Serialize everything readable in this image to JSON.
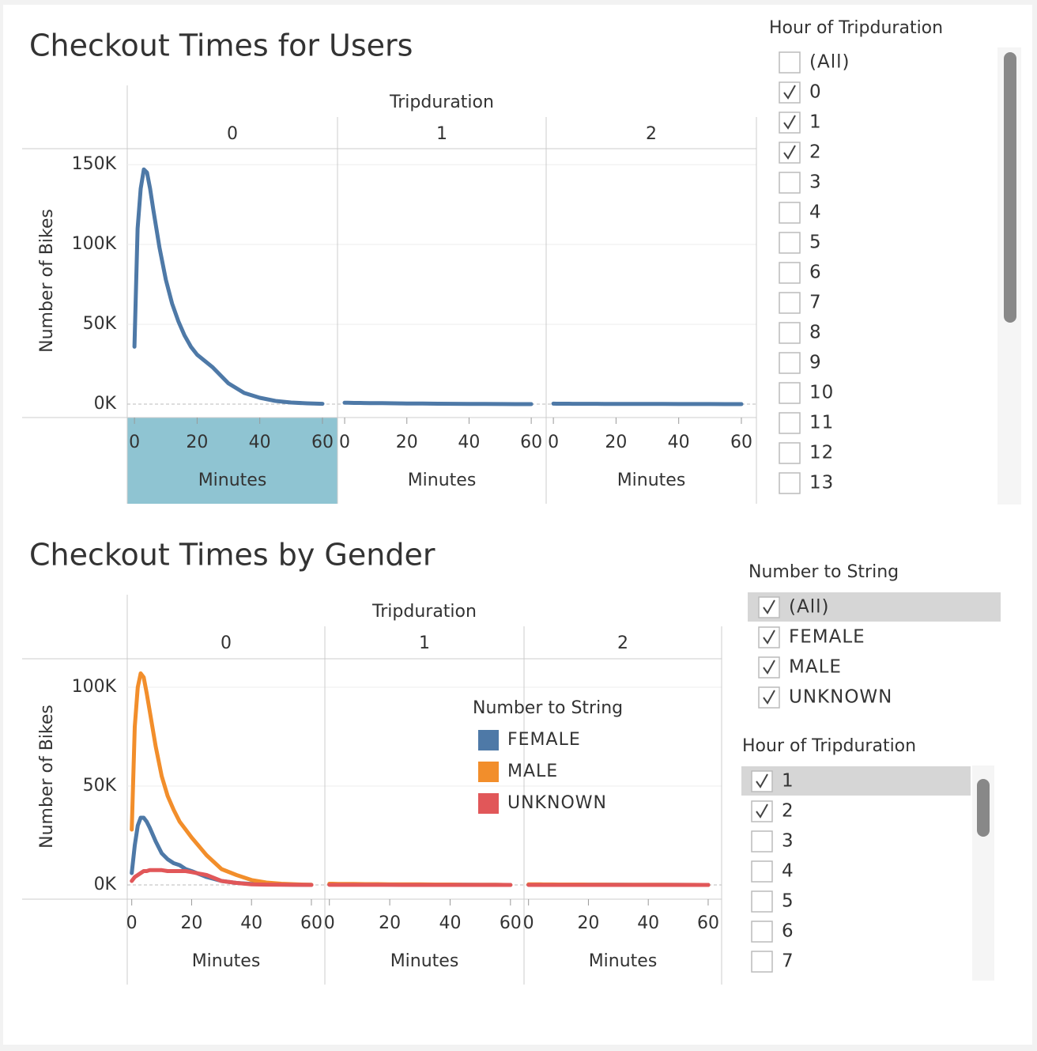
{
  "chart_data": [
    {
      "type": "line",
      "title": "Checkout Times for Users",
      "facet_title": "Tripduration",
      "x_label": "Minutes",
      "y_label": "Number of Bikes",
      "x": [
        0,
        1,
        2,
        3,
        4,
        5,
        6,
        8,
        10,
        12,
        14,
        16,
        18,
        20,
        25,
        30,
        35,
        40,
        45,
        50,
        55,
        60
      ],
      "xlim": [
        -2.3,
        64.8
      ],
      "xticks": [
        0,
        20,
        40,
        60
      ],
      "ylim": [
        -8400,
        160000
      ],
      "yticks": [
        {
          "value": 0,
          "label": "0K"
        },
        {
          "value": 50000,
          "label": "50K"
        },
        {
          "value": 100000,
          "label": "100K"
        },
        {
          "value": 150000,
          "label": "150K"
        }
      ],
      "grid": true,
      "legend": false,
      "series": [
        {
          "color": "#4e79a7"
        }
      ],
      "facets": [
        {
          "label": "0",
          "values": [
            [
              36000,
              110000,
              135000,
              147000,
              145000,
              135000,
              122000,
              98000,
              78000,
              63000,
              52000,
              43000,
              36000,
              31000,
              23000,
              13000,
              7000,
              4000,
              2000,
              1000,
              500,
              200
            ]
          ]
        },
        {
          "label": "1",
          "values": [
            [
              900,
              850,
              800,
              780,
              760,
              740,
              720,
              680,
              640,
              600,
              560,
              520,
              480,
              440,
              360,
              280,
              210,
              150,
              100,
              60,
              30,
              10
            ]
          ]
        },
        {
          "label": "2",
          "values": [
            [
              300,
              290,
              280,
              270,
              260,
              250,
              240,
              230,
              220,
              210,
              200,
              190,
              180,
              170,
              150,
              130,
              110,
              90,
              70,
              50,
              30,
              10
            ]
          ]
        }
      ]
    },
    {
      "type": "line",
      "title": "Checkout Times by Gender",
      "facet_title": "Tripduration",
      "x_label": "Minutes",
      "y_label": "Number of Bikes",
      "x": [
        0,
        1,
        2,
        3,
        4,
        5,
        6,
        8,
        10,
        12,
        14,
        16,
        18,
        20,
        25,
        30,
        35,
        40,
        45,
        50,
        55,
        60
      ],
      "xlim": [
        -1.5,
        64.5
      ],
      "xticks": [
        0,
        20,
        40,
        60
      ],
      "ylim": [
        -7200,
        114400
      ],
      "yticks": [
        {
          "value": 0,
          "label": "0K"
        },
        {
          "value": 50000,
          "label": "50K"
        },
        {
          "value": 100000,
          "label": "100K"
        }
      ],
      "grid": true,
      "legend": true,
      "legend_title": "Number to String",
      "series": [
        {
          "name": "FEMALE",
          "color": "#4e79a7"
        },
        {
          "name": "MALE",
          "color": "#f28e2b"
        },
        {
          "name": "UNKNOWN",
          "color": "#e15759"
        }
      ],
      "facets": [
        {
          "label": "0",
          "values": [
            [
              6000,
              20000,
              30000,
              34000,
              34000,
              32000,
              29000,
              22000,
              16000,
              13000,
              11000,
              10000,
              8000,
              7000,
              4000,
              2000,
              1000,
              500,
              300,
              200,
              100,
              50
            ],
            [
              28000,
              80000,
              100000,
              107000,
              105000,
              97000,
              88000,
              70000,
              55000,
              45000,
              38000,
              32000,
              28000,
              24000,
              15000,
              8000,
              5000,
              2500,
              1200,
              600,
              300,
              100
            ],
            [
              2000,
              4000,
              5000,
              6000,
              7000,
              7000,
              7500,
              7500,
              7500,
              7000,
              7000,
              7000,
              7000,
              6500,
              5000,
              2000,
              1000,
              300,
              150,
              80,
              40,
              20
            ]
          ]
        },
        {
          "label": "1",
          "values": [
            [
              300,
              290,
              280,
              270,
              260,
              250,
              240,
              230,
              220,
              210,
              200,
              190,
              180,
              170,
              150,
              130,
              110,
              90,
              70,
              50,
              30,
              10
            ],
            [
              600,
              580,
              560,
              540,
              520,
              500,
              480,
              460,
              440,
              420,
              400,
              380,
              360,
              340,
              300,
              260,
              220,
              180,
              140,
              100,
              60,
              20
            ],
            [
              50,
              48,
              46,
              44,
              42,
              40,
              38,
              36,
              34,
              32,
              30,
              28,
              26,
              24,
              20,
              16,
              12,
              10,
              8,
              6,
              4,
              2
            ]
          ]
        },
        {
          "label": "2",
          "values": [
            [
              150,
              145,
              140,
              135,
              130,
              125,
              120,
              115,
              110,
              105,
              100,
              95,
              90,
              85,
              75,
              65,
              55,
              45,
              35,
              25,
              15,
              5
            ],
            [
              300,
              290,
              280,
              270,
              260,
              250,
              240,
              230,
              220,
              210,
              200,
              190,
              180,
              170,
              150,
              130,
              110,
              90,
              70,
              50,
              30,
              10
            ],
            [
              20,
              19,
              18,
              17,
              16,
              15,
              14,
              13,
              12,
              11,
              10,
              9,
              8,
              7,
              6,
              5,
              4,
              3,
              2,
              2,
              1,
              1
            ]
          ]
        }
      ]
    }
  ],
  "filters": [
    {
      "title": "Hour of Tripduration",
      "items": [
        {
          "label": "(All)",
          "checked": false
        },
        {
          "label": "0",
          "checked": true
        },
        {
          "label": "1",
          "checked": true
        },
        {
          "label": "2",
          "checked": true
        },
        {
          "label": "3",
          "checked": false
        },
        {
          "label": "4",
          "checked": false
        },
        {
          "label": "5",
          "checked": false
        },
        {
          "label": "6",
          "checked": false
        },
        {
          "label": "7",
          "checked": false
        },
        {
          "label": "8",
          "checked": false
        },
        {
          "label": "9",
          "checked": false
        },
        {
          "label": "10",
          "checked": false
        },
        {
          "label": "11",
          "checked": false
        },
        {
          "label": "12",
          "checked": false
        },
        {
          "label": "13",
          "checked": false
        }
      ]
    },
    {
      "title": "Number to String",
      "items": [
        {
          "label": "(All)",
          "checked": true,
          "selected": true
        },
        {
          "label": "FEMALE",
          "checked": true
        },
        {
          "label": "MALE",
          "checked": true
        },
        {
          "label": "UNKNOWN",
          "checked": true
        }
      ]
    },
    {
      "title": "Hour of Tripduration",
      "items": [
        {
          "label": "1",
          "checked": true,
          "selected": true
        },
        {
          "label": "2",
          "checked": true
        },
        {
          "label": "3",
          "checked": false
        },
        {
          "label": "4",
          "checked": false
        },
        {
          "label": "5",
          "checked": false
        },
        {
          "label": "6",
          "checked": false
        },
        {
          "label": "7",
          "checked": false
        }
      ]
    }
  ]
}
